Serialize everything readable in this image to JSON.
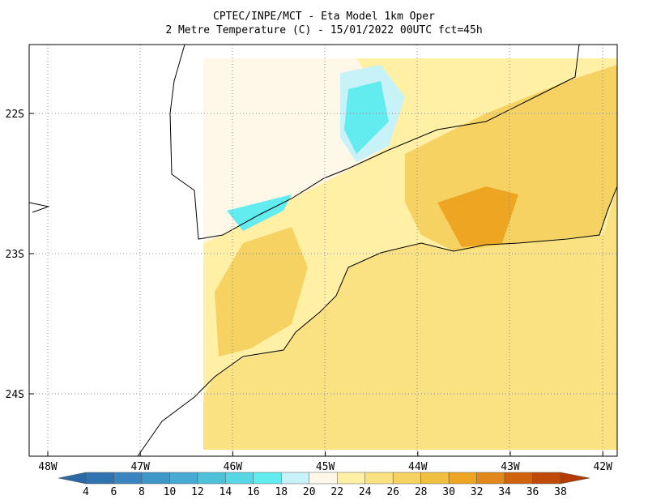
{
  "header": {
    "title": "CPTEC/INPE/MCT -  Eta Model 1km Oper",
    "subtitle": "2 Metre Temperature (C) - 15/01/2022 00UTC fct=45h"
  },
  "lon_labels": [
    "48W",
    "47W",
    "46W",
    "45W",
    "44W",
    "43W",
    "42W"
  ],
  "lat_labels": [
    "22S",
    "23S",
    "24S"
  ],
  "colorbar": {
    "levels": [
      4,
      6,
      8,
      10,
      12,
      14,
      16,
      18,
      20,
      22,
      24,
      26,
      28,
      30,
      32,
      34,
      36,
      38
    ],
    "colors": [
      "#2b68a4",
      "#3172b0",
      "#3a85bf",
      "#3f97c8",
      "#46aad2",
      "#4fc0da",
      "#58d6e4",
      "#62ecf0",
      "#c6f2f8",
      "#fff8e8",
      "#fff0a6",
      "#fae282",
      "#f5d262",
      "#f0c040",
      "#eea622",
      "#e0881c",
      "#d0640e",
      "#c04a08",
      "#b43c00"
    ]
  }
}
